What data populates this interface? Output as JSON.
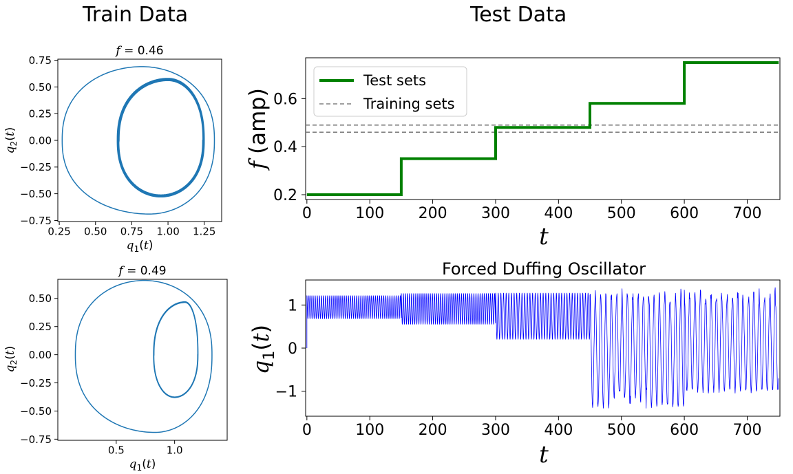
{
  "headings": {
    "train": "Train Data",
    "test": "Test Data"
  },
  "colors": {
    "phase": "#1f77b4",
    "test": "#008000",
    "train": "#808080",
    "duffing": "#0000ff"
  },
  "chart_data": [
    {
      "id": "phase1",
      "type": "line",
      "title": "f = 0.46",
      "xlabel": "q1(t)",
      "ylabel": "q2(t)",
      "xlim": [
        0.24,
        1.37
      ],
      "ylim": [
        -0.76,
        0.76
      ],
      "xticks": [
        "0.25",
        "0.50",
        "0.75",
        "1.00",
        "1.25"
      ],
      "xtick_values": [
        0.25,
        0.5,
        0.75,
        1.0,
        1.25
      ],
      "yticks": [
        "0.75",
        "0.50",
        "0.25",
        "0.00",
        "−0.25",
        "−0.50",
        "−0.75"
      ],
      "ytick_values": [
        0.75,
        0.5,
        0.25,
        0.0,
        -0.25,
        -0.5,
        -0.75
      ],
      "orbits": [
        {
          "xmin": 0.27,
          "xmax": 1.32,
          "ymax": 0.69,
          "ymin": -0.69,
          "x_top": 0.82,
          "x_bot": 0.87,
          "laps": 1
        },
        {
          "xmin": 0.65,
          "xmax": 1.25,
          "ymax": 0.58,
          "ymin": -0.53,
          "x_top": 1.0,
          "x_bot": 0.95,
          "laps": 4
        }
      ]
    },
    {
      "id": "phase2",
      "type": "line",
      "title": "f = 0.49",
      "xlabel": "q1(t)",
      "ylabel": "q2(t)",
      "xlim": [
        0.0,
        1.45
      ],
      "ylim": [
        -0.76,
        0.67
      ],
      "xticks": [
        "0.5",
        "1.0"
      ],
      "xtick_values": [
        0.5,
        1.0
      ],
      "yticks": [
        "0.50",
        "0.25",
        "0.00",
        "−0.25",
        "−0.50",
        "−0.75"
      ],
      "ytick_values": [
        0.5,
        0.25,
        0.0,
        -0.25,
        -0.5,
        -0.75
      ],
      "orbits": [
        {
          "xmin": 0.15,
          "xmax": 1.32,
          "ymax": 0.66,
          "ymin": -0.69,
          "x_top": 0.74,
          "x_bot": 0.83,
          "laps": 1
        },
        {
          "xmin": 0.82,
          "xmax": 1.2,
          "ymax": 0.47,
          "ymin": -0.38,
          "x_top": 1.09,
          "x_bot": 1.0,
          "laps": 2
        }
      ]
    },
    {
      "id": "amp",
      "type": "line",
      "xlabel": "t",
      "ylabel": "f (amp)",
      "xlim": [
        -2,
        752
      ],
      "ylim": [
        0.18,
        0.77
      ],
      "xticks": [
        "0",
        "100",
        "200",
        "300",
        "400",
        "500",
        "600",
        "700"
      ],
      "xtick_values": [
        0,
        100,
        200,
        300,
        400,
        500,
        600,
        700
      ],
      "yticks": [
        "0.2",
        "0.4",
        "0.6"
      ],
      "ytick_values": [
        0.2,
        0.4,
        0.6
      ],
      "series": [
        {
          "name": "Test sets",
          "style": "step",
          "x": [
            0,
            150,
            150,
            300,
            300,
            450,
            450,
            600,
            600,
            750
          ],
          "y": [
            0.2,
            0.2,
            0.35,
            0.35,
            0.48,
            0.48,
            0.58,
            0.58,
            0.75,
            0.75
          ]
        }
      ],
      "hlines": [
        {
          "name": "Training sets",
          "values": [
            0.46,
            0.49
          ]
        }
      ],
      "legend": "top-left"
    },
    {
      "id": "duffing",
      "type": "line",
      "title": "Forced Duffing Oscillator",
      "xlabel": "t",
      "ylabel": "q1(t)",
      "xlim": [
        -2,
        752
      ],
      "ylim": [
        -1.58,
        1.58
      ],
      "xticks": [
        "0",
        "100",
        "200",
        "300",
        "400",
        "500",
        "600",
        "700"
      ],
      "xtick_values": [
        0,
        100,
        200,
        300,
        400,
        500,
        600,
        700
      ],
      "yticks": [
        "1",
        "0",
        "−1"
      ],
      "ytick_values": [
        1,
        0,
        -1
      ],
      "segments": [
        {
          "t0": 0,
          "t1": 150,
          "hi": 1.22,
          "lo": 0.68,
          "period": 3.3
        },
        {
          "t0": 150,
          "t1": 300,
          "hi": 1.27,
          "lo": 0.55,
          "period": 3.3
        },
        {
          "t0": 300,
          "t1": 450,
          "hi": 1.28,
          "lo": 0.2,
          "period": 4.2
        },
        {
          "t0": 450,
          "t1": 600,
          "hi": 1.4,
          "lo": -1.4,
          "period": 8.5
        },
        {
          "t0": 600,
          "t1": 750,
          "hi": 1.42,
          "lo": -1.05,
          "period": 8.5
        }
      ]
    }
  ]
}
